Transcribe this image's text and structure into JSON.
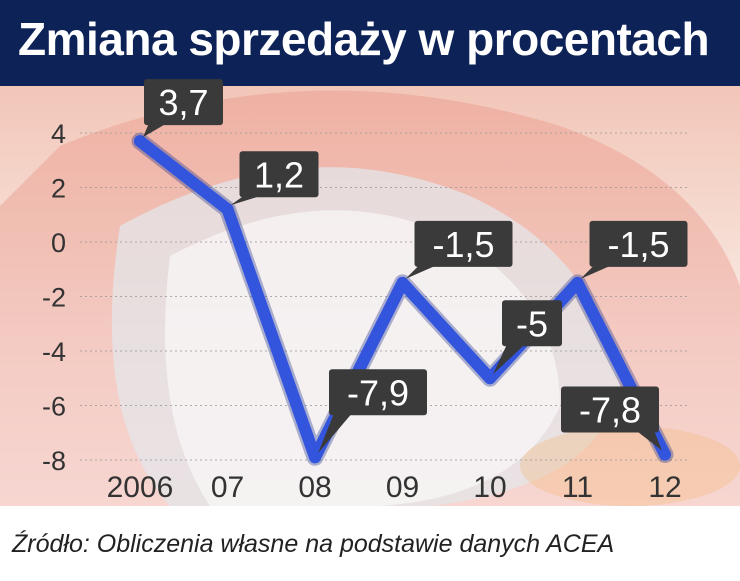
{
  "title": "Zmiana sprzedaży w procentach",
  "source": "Źródło: Obliczenia własne na podstawie danych ACEA",
  "colors": {
    "header": "#0d2257",
    "line": "#3355dd",
    "label_box": "#3a3a3a",
    "label_text": "#ffffff",
    "axis_text": "#333333"
  },
  "chart_data": {
    "type": "line",
    "title": "Zmiana sprzedaży w procentach",
    "xlabel": "",
    "ylabel": "",
    "categories": [
      "2006",
      "07",
      "08",
      "09",
      "10",
      "11",
      "12"
    ],
    "series": [
      {
        "values": [
          3.7,
          1.2,
          -7.9,
          -1.5,
          -5,
          -1.5,
          -7.8
        ],
        "labels": [
          "3,7",
          "1,2",
          "-7,9",
          "-1,5",
          "-5",
          "-1,5",
          "-7,8"
        ]
      }
    ],
    "yticks": [
      4,
      2,
      0,
      -2,
      -4,
      -6,
      -8
    ],
    "ytick_labels": [
      "4",
      "2",
      "0",
      "-2",
      "-4",
      "-6",
      "-8"
    ],
    "ylim": [
      -8,
      4
    ],
    "grid": true,
    "legend": "none"
  }
}
